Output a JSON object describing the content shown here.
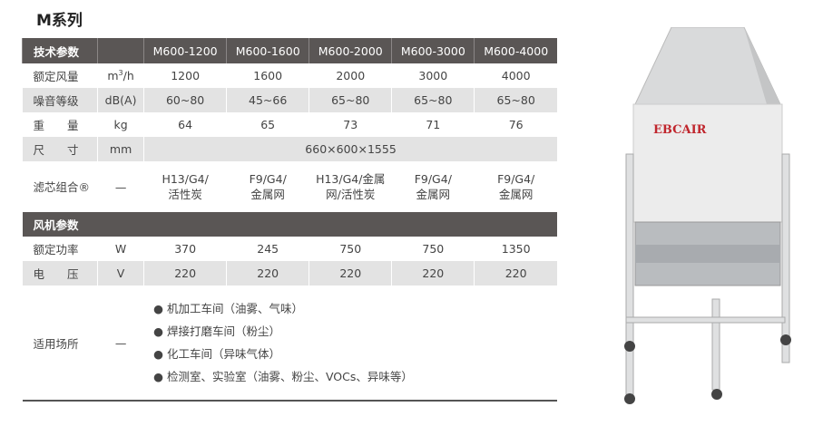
{
  "title": "M系列",
  "header": {
    "label": "技术参数",
    "models": [
      "M600-1200",
      "M600-1600",
      "M600-2000",
      "M600-3000",
      "M600-4000"
    ]
  },
  "rows": [
    {
      "label": "额定风量",
      "unit": "m³/h",
      "values": [
        "1200",
        "1600",
        "2000",
        "3000",
        "4000"
      ]
    },
    {
      "label": "噪音等级",
      "unit": "dB(A)",
      "values": [
        "60~80",
        "45~66",
        "65~80",
        "65~80",
        "65~80"
      ]
    },
    {
      "label": "重　　量",
      "unit": "kg",
      "values": [
        "64",
        "65",
        "73",
        "71",
        "76"
      ]
    },
    {
      "label": "尺　　寸",
      "unit": "mm",
      "span_value": "660×600×1555"
    },
    {
      "label": "滤芯组合®",
      "unit": "—",
      "values": [
        [
          "H13/G4/",
          "活性炭"
        ],
        [
          "F9/G4/",
          "金属网"
        ],
        [
          "H13/G4/金属",
          "网/活性炭"
        ],
        [
          "F9/G4/",
          "金属网"
        ],
        [
          "F9/G4/",
          "金属网"
        ]
      ]
    }
  ],
  "fan_section": {
    "label": "风机参数"
  },
  "fan_rows": [
    {
      "label": "额定功率",
      "unit": "W",
      "values": [
        "370",
        "245",
        "750",
        "750",
        "1350"
      ]
    },
    {
      "label": "电　　压",
      "unit": "V",
      "values": [
        "220",
        "220",
        "220",
        "220",
        "220"
      ]
    }
  ],
  "usage": {
    "label": "适用场所",
    "unit": "—",
    "items": [
      "● 机加工车间（油雾、气味）",
      "● 焊接打磨车间（粉尘）",
      "● 化工车间（异味气体）",
      "● 检测室、实验室（油雾、粉尘、VOCs、异味等）"
    ]
  },
  "product": {
    "brand": "EBCAIR"
  }
}
